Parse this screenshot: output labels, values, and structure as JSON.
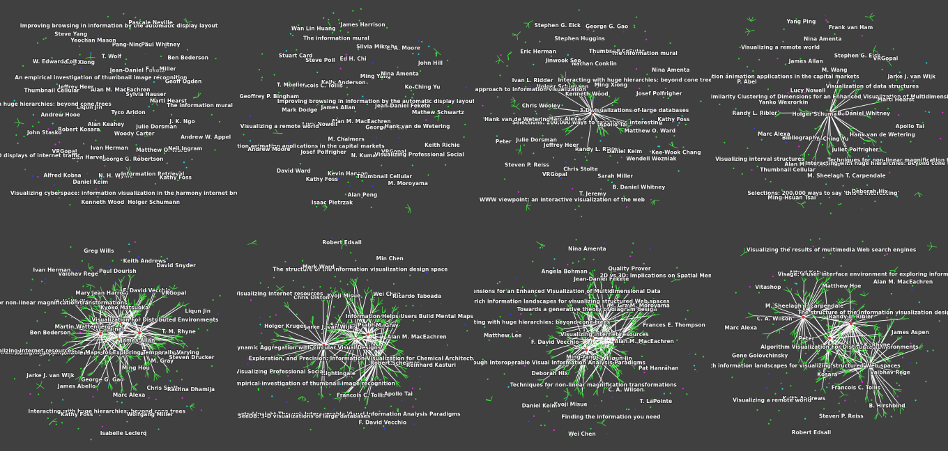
{
  "panels": [
    {
      "labels": [
        "Tyco Aridon",
        "Alan Keahey",
        "Alan M. MacEachren",
        "Woody Carter",
        "Liqun Jin",
        "Sylvia Hauser",
        "Ivan Herman",
        "An empirical investigation of thumbnail image recognition",
        "Julie Dorsman",
        "Robert Kosara",
        "Jean-Daniel Fekete",
        "George G. Robertson",
        "Jeffrey Heer",
        "Marti Hearst",
        "Dan Harvel",
        "T. Wolf",
        "Matthew O. Ward",
        "Andrew Hooe",
        "F. L. Miller",
        "N. H. Wyllie",
        "Ming Xiong",
        "J. K. Ngo",
        "VRGopal",
        "Pang-Ning Tan",
        "Information Retrieval",
        "Thumbnail Cellular",
        "Geoff Ogden",
        "Daniel Keim",
        "Yeochan Mason",
        "Neil Ingram",
        "John Stasko",
        "Paul Whitney",
        "Visualizing cyberspace: information visualization in the harmony internet browser",
        "W. Edward Colt",
        "The information mural",
        "Alfred Kobsa",
        "Improving browsing in information by the automatic display layout",
        "Kathy Foss",
        "Interacting with huge hierarchies: beyond cone trees",
        "Ben Bederson",
        "Kenneth Wood",
        "Steve Yang",
        "Andrew W. Appel",
        "3D displays of internet traffic",
        "Pascale Neville",
        "Holger Schumann"
      ]
    },
    {
      "labels": [
        "Alan M. MacEachren",
        "James Allan",
        "Improving browsing in information by the automatic display layout",
        "M. Chalmers",
        "Kelly Anderson",
        "George G. Gao",
        "Lucy Nowell",
        "Ming Yang",
        "N. Kumar",
        "Francois C. Tollis",
        "Jean-Daniel Fekete",
        "Josef Polfrigher",
        "Ed H. Chi",
        "VRGopal",
        "Mark Dodge",
        "Nina Amenta",
        "Kevin Hanson",
        "Steve Poll",
        "Hank van de Wetering",
        "Information animation applications in the capital markets",
        "Silvia Miksch",
        "Thumbnail Cellular",
        "T. Moeller",
        "Ko-Ching Yu",
        "Kathy Foss",
        "The information mural",
        "Visualizing Professional Social",
        "Visualizing a remote world",
        "C. A. Moore",
        "Alan Peng",
        "Stuart Card",
        "Mathew Schwartz",
        "David Ward",
        "James Harrison",
        "M. Moroyama",
        "Geoffrey P. Bingham",
        "John Hill",
        "Isaac Pietrzak",
        "Wan Lin Huang",
        "Keith Richie",
        "Andrew Moore"
      ]
    },
    {
      "labels": [
        "Selections: 200,000 ways to say 'this is interesting'",
        "Kenneth Wood",
        "Apollo Tai",
        "Marc Alexa",
        "Ming Xiong",
        "Randy L. Ribler",
        "Holger Schumann",
        "3-D visualizations of large databases",
        "Jeffrey Heer",
        "Nathan Conklin",
        "Daniel Keim",
        "Chris Wooley",
        "Interacting with huge hierarchies: beyond cone trees",
        "Chris Stolte",
        "Jinwook Seo",
        "Matthew O. Ward",
        "Julie Dorsman",
        "Thumbnail Cellular",
        "Sarah Miller",
        "Ivan L. Ridder",
        "Josef Polfrigher",
        "VRGopal",
        "Stephen Huggins",
        "Wendell Wozniak",
        "Hank van de Wetering",
        "The information mural",
        "T. Jeremy",
        "Eric Herman",
        "Kathy Foss",
        "Steven P. Reiss",
        "George G. Gao",
        "B. Daniel Whitney",
        "A spreadsheet approach to information visualization",
        "Nina Amenta",
        "WWW viewpoint: an interactive visualization of the web",
        "Stephen G. Eick",
        "Kee-Wook Chang",
        "Peter"
      ]
    },
    {
      "labels": [
        "Holger Schumann",
        "Similarity Clustering of Dimensions for an Enhanced Visualization of Multidimensional Data",
        "Ko-Ching Yu",
        "Lucy Nowell",
        "B. Daniel Whitney",
        "Bibliography",
        "M. Wang",
        "Juliet Polfrigher",
        "Yanko Wexrorkin",
        "Visualization of data structures",
        "Alan M. MacEachren",
        "James Allan",
        "Hank van de Wetering",
        "Marc Alexa",
        "Stephen G. Eick",
        "M. Sheelagh T. Carpendale",
        "Information animation applications in the capital markets",
        "Marti Hearst",
        "Thumbnail Cellular",
        "Nina Amenta",
        "Interacting with huge hierarchies: beyond cone trees",
        "Randy L. Ribler",
        "VRGopal",
        "Selections: 200,000 ways to say 'this is interesting'",
        "Visualizing a remote world",
        "Apollo Tai",
        "Visualizing interval structures",
        "Frank van Ham",
        "Deborah Hix",
        "P. Abel",
        "Jarke J. van Wijk",
        "Ming-Hsuan Tsai",
        "Yang Ping",
        "Techniques for non-linear magnification transformations"
      ]
    },
    {
      "labels": [
        "E. Lainel",
        "James Allan",
        "Visualizing Application Behavior on Superscalar Processors",
        "Kyoko Matsuoka",
        "Ming Hou",
        "Martin Wattenberg",
        "Visualization For Distributed Environments",
        "George G. Gao",
        "Mary Jean Harrold",
        "M. Gray",
        "Geographic Visualization: Designing Manipulable Maps for Exploring Temporally Varying",
        "F. David Vecchio",
        "Marc Alexa",
        "N. H. Wyllie",
        "T. M. Rhyne",
        "James Abello",
        "Paul Dourish",
        "Chris Stolte",
        "Ben Bederson",
        "VRGopal",
        "Interacting with huge hierarchies: beyond cone trees",
        "Vaibhav Rege",
        "Steven Drucker",
        "Jarke J. van Wijk",
        "Keith Andrews",
        "Wolfgang Miller",
        "Techniques for non-linear magnification transformations",
        "Liqun Jin",
        "Kathy Foss",
        "Greg Wills",
        "Rachna Dhamija",
        "Visualizing internet resources",
        "David Snyder",
        "Isabelle Leclerq",
        "Ivan Herman"
      ]
    },
    {
      "labels": [
        "Sandeep Prabhakar",
        "Exploration, and Precision: Information Visualization for Chemical Architecture",
        "Jarke J. van Wijk",
        "M. Gray",
        "Nightingale",
        "Kyoji Misue",
        "Robert Schelmer",
        "Dynamic Aggregation with Circular Visual Designs",
        "Wei Chen",
        "Francois C. Tollis",
        "Chris Olston",
        "Alan M. MacEachren",
        "An empirical investigation of thumbnail image recognition",
        "The structure of the information visualization design space",
        "Apollo Tai",
        "Holger Kruger",
        "Ricardo Taboada",
        "Multi-Faceted Insight Through Interoperable Visual Information Analysis Paradigms",
        "Mark Ward",
        "Reinhard Kasturi",
        "Visualizing Professional Social",
        "Min Chen",
        "F. David Vecchio",
        "Visualizing internet resources",
        "Information Helps Users Build Mental Maps of Spatial Information",
        "SeeDB: 3-D visualizations of large databases",
        "Robert Edsall"
      ]
    },
    {
      "labels": [
        "Visualizing internet resources",
        "Ming-Yang",
        "Towards a generative theory of diagram design",
        "Liqun Jin",
        "F. David Vecchio",
        "M. Gray",
        "Techniques for non-linear magnification transformations",
        "Towards rich information landscapes for visualizing structured Web spaces",
        "Alan M. MacEachren",
        "Deborah Hix",
        "Jean-Daniel Fekete",
        "C. A. Wilson",
        "Interacting with huge hierarchies: beyond cone trees",
        "M. Moroyama",
        "Kyoji Misue",
        "Angela Bohman",
        "Pat Hanrahan",
        "Multi-Faceted Insight Through Interoperable Visual Information Analysis Paradigms",
        "Quality Prover",
        "Finding the information you need",
        "Similarity Clustering of Dimensions for an Enhanced Visualization of Multidimensional Data",
        "Frances E. Thompson",
        "Daniel Keim",
        "Nina Amenta",
        "T. LaPointe",
        "Matthew Lee",
        "2D vs 3D: Implications on Spatial Memory",
        "Wei Chen"
      ]
    },
    {
      "labels": [
        "Algorithm Visualization For Distributed Environments",
        "Peter",
        "Randy L. Ribler",
        "Kosara",
        "M. Sheelagh T. Carpendale",
        "A. K. Rhyne",
        "Towards rich information landscapes for visualizing structured Web spaces",
        "Matthew Hoe",
        "Francois C. Tollis",
        "C. A. Wilson",
        "The structure of the information visualization design space",
        "Keith Andrews",
        "Alfred Kobsa",
        "Vaibhav Rege",
        "Gene Golovchinsky",
        "Visage: a user interface environment for exploring information",
        "Steven P. Reiss",
        "Vitashop",
        "James Aspen",
        "Visualizing a remote world",
        "Visualizing the results of multimedia Web search engines",
        "B. Hirshbind",
        "Marc Alexa",
        "Alan M. MacEachren",
        "Robert Edsall"
      ]
    }
  ]
}
